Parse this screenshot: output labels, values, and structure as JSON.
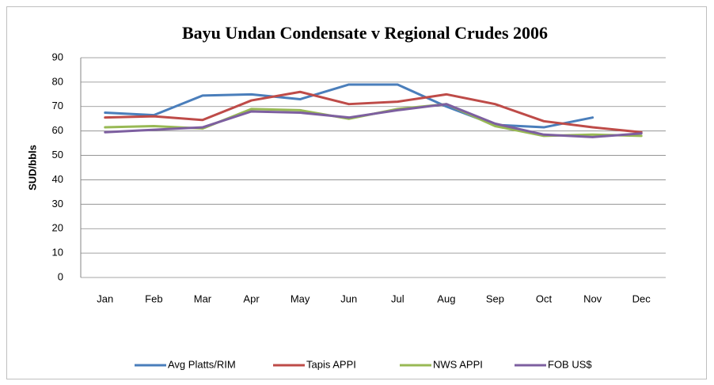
{
  "chart_data": {
    "type": "line",
    "title": "Bayu Undan Condensate v Regional Crudes 2006",
    "y_label": "SUD/bbls",
    "categories": [
      "Jan",
      "Feb",
      "Mar",
      "Apr",
      "May",
      "Jun",
      "Jul",
      "Aug",
      "Sep",
      "Oct",
      "Nov",
      "Dec"
    ],
    "series": [
      {
        "name": "Avg Platts/RIM",
        "color": "#4a7ebb",
        "values": [
          67.5,
          66.5,
          74.5,
          75,
          73,
          79,
          79,
          70,
          62.5,
          61.5,
          65.5,
          null
        ]
      },
      {
        "name": "Tapis APPI",
        "color": "#be4b48",
        "values": [
          65.5,
          66,
          64.5,
          72.5,
          76,
          71,
          72,
          75,
          71,
          64,
          61.5,
          59.5
        ]
      },
      {
        "name": "NWS APPI",
        "color": "#98b954",
        "values": [
          61.5,
          62,
          61,
          69,
          68.5,
          65,
          69,
          71,
          62,
          58,
          58.5,
          58
        ]
      },
      {
        "name": "FOB US$",
        "color": "#7d5fa0",
        "values": [
          59.5,
          60.5,
          61.5,
          68,
          67.5,
          65.5,
          68.5,
          71,
          63,
          58.5,
          57.5,
          59
        ]
      }
    ],
    "ylim": [
      0,
      90
    ],
    "yticks": [
      0,
      10,
      20,
      30,
      40,
      50,
      60,
      70,
      80,
      90
    ],
    "grid": true,
    "legend": "bottom"
  }
}
